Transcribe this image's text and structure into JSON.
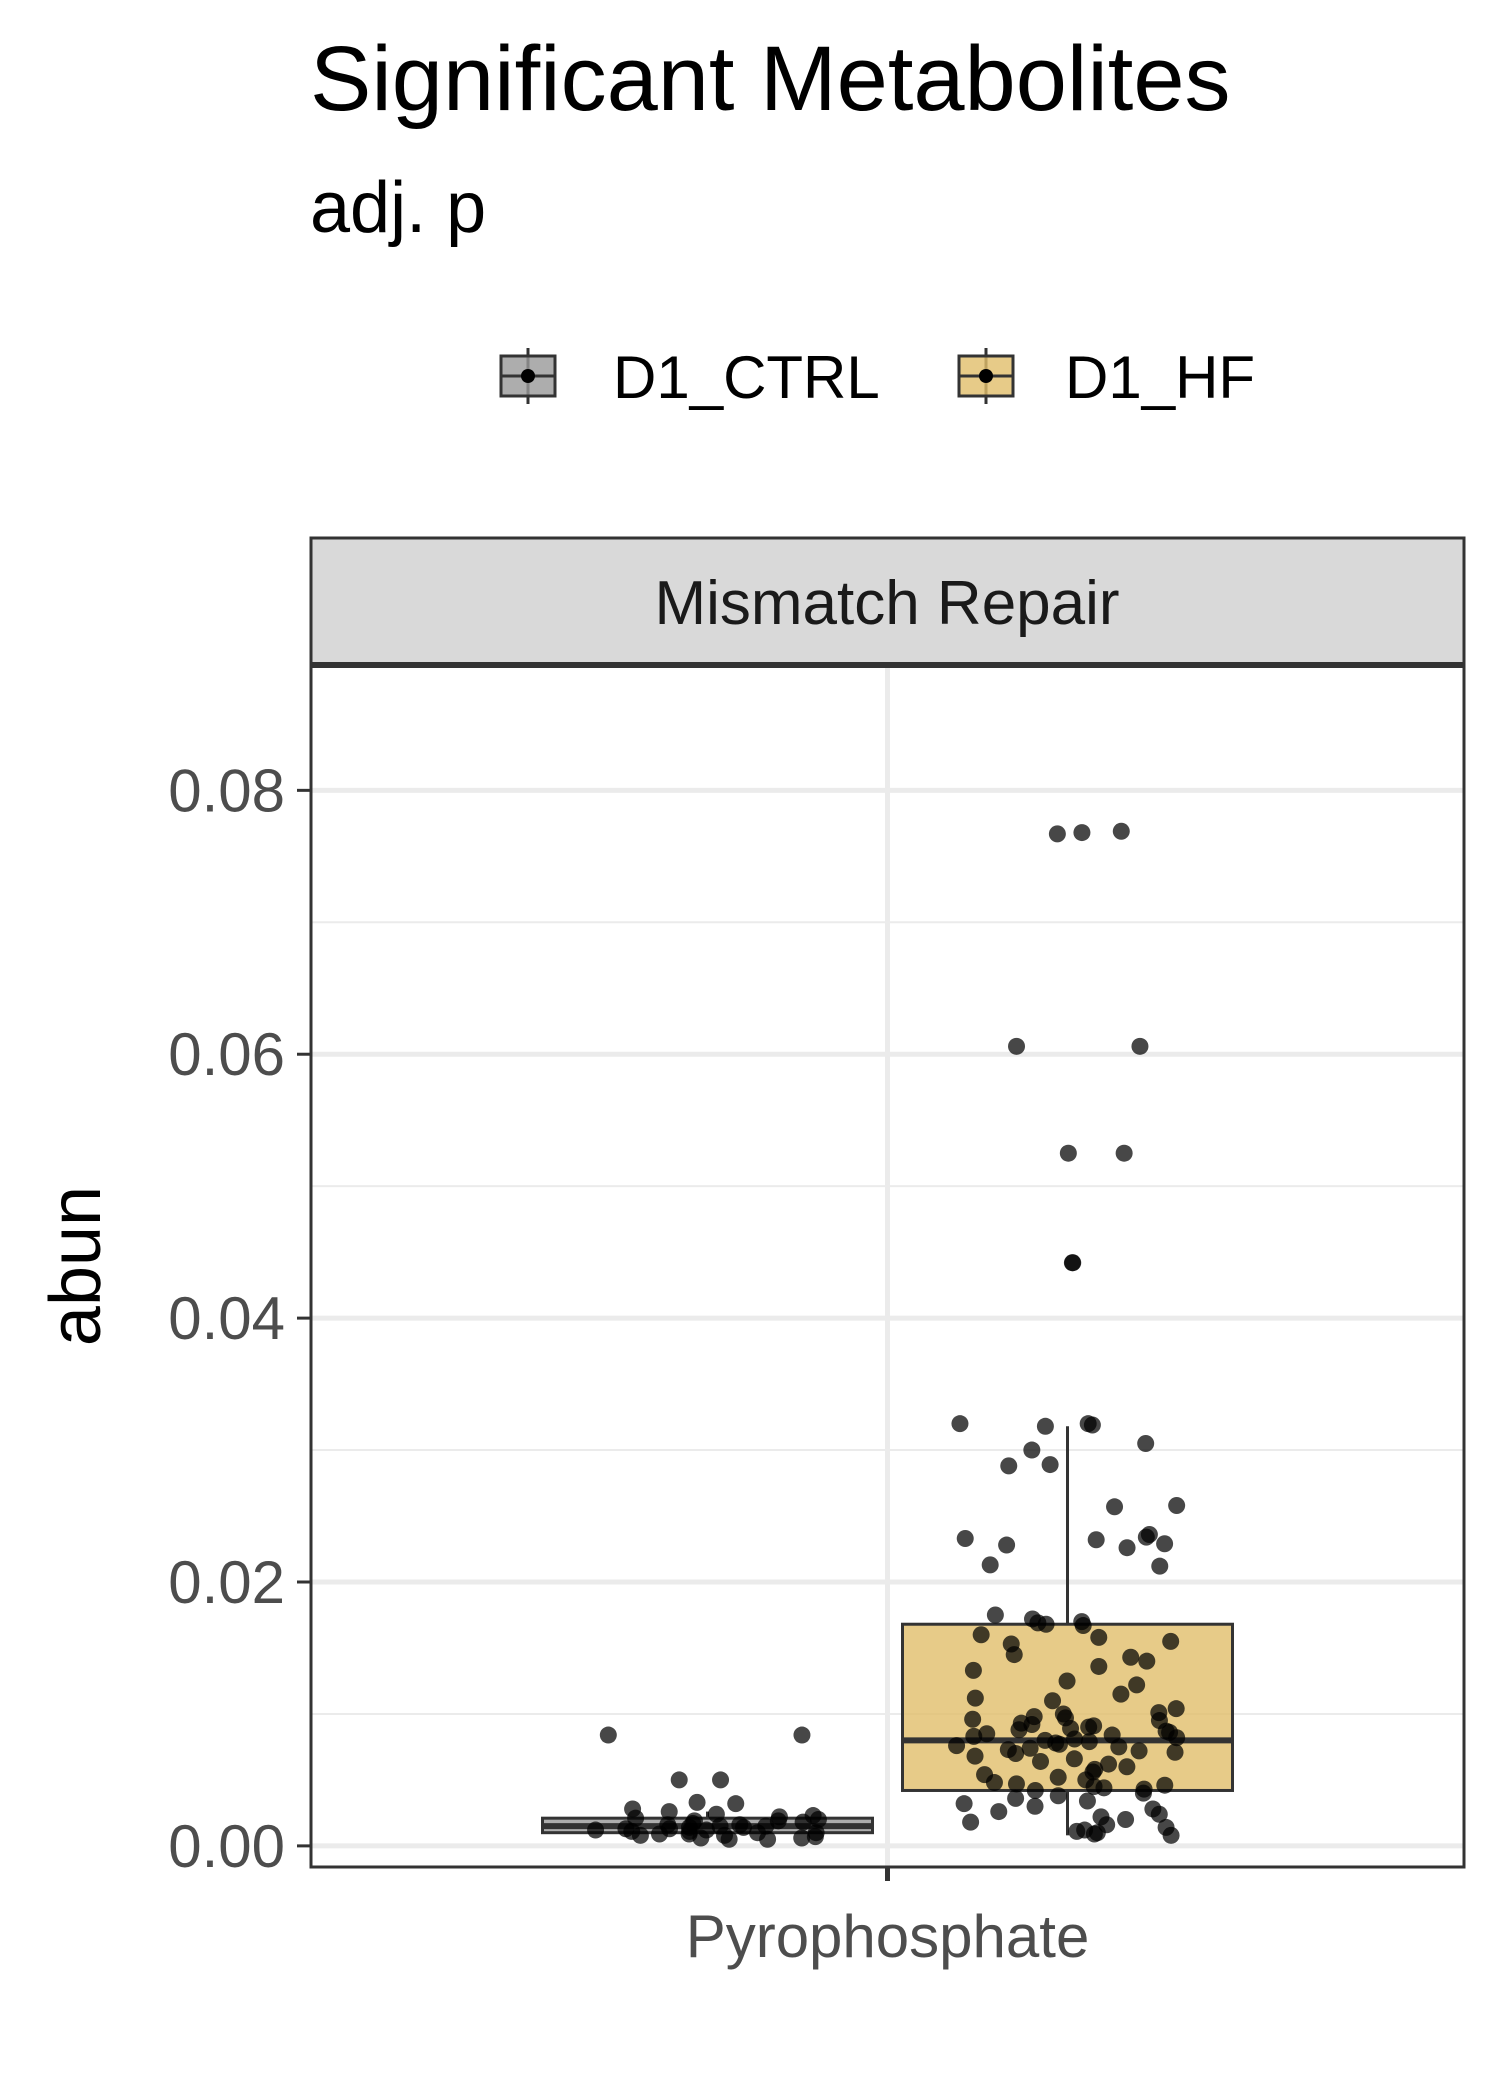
{
  "chart_data": {
    "type": "box",
    "title": "Significant Metabolites",
    "subtitle": "adj. p",
    "facet": "Mismatch Repair",
    "xlabel": "",
    "ylabel": "abun",
    "categories": [
      "Pyrophosphate"
    ],
    "ylim": [
      -0.0016,
      0.0895
    ],
    "yticks": [
      0.0,
      0.02,
      0.04,
      0.06,
      0.08
    ],
    "ytick_labels": [
      "0.00",
      "0.02",
      "0.04",
      "0.06",
      "0.08"
    ],
    "grid": true,
    "legend_position": "top",
    "series": [
      {
        "name": "D1_CTRL",
        "color": "#999999",
        "box": {
          "min": 0.0009,
          "q1": 0.001,
          "median": 0.0015,
          "q3": 0.0021,
          "max": 0.0026
        },
        "points": [
          0.0084,
          0.0084,
          0.005,
          0.005,
          0.0033,
          0.0032,
          0.0028,
          0.0026,
          0.0024,
          0.0023,
          0.0022,
          0.0021,
          0.002,
          0.0019,
          0.0019,
          0.0018,
          0.0017,
          0.0016,
          0.0016,
          0.0015,
          0.0015,
          0.0014,
          0.0014,
          0.0013,
          0.0013,
          0.0012,
          0.0012,
          0.0011,
          0.0011,
          0.001,
          0.001,
          0.0009,
          0.0009,
          0.0008,
          0.0008,
          0.0007,
          0.0006,
          0.0006,
          0.0005,
          0.0005
        ]
      },
      {
        "name": "D1_HF",
        "color": "#E1BE6A",
        "box": {
          "min": 0.0008,
          "q1": 0.0042,
          "median": 0.008,
          "q3": 0.0168,
          "max": 0.0318
        },
        "points": [
          0.0769,
          0.0768,
          0.0767,
          0.0606,
          0.0606,
          0.0525,
          0.0525,
          0.0442,
          0.0442,
          0.032,
          0.032,
          0.0319,
          0.0318,
          0.0305,
          0.03,
          0.0289,
          0.0288,
          0.0258,
          0.0257,
          0.0236,
          0.0234,
          0.0233,
          0.0232,
          0.0229,
          0.0228,
          0.0226,
          0.0213,
          0.0212,
          0.0175,
          0.0172,
          0.017,
          0.0169,
          0.0168,
          0.0167,
          0.016,
          0.0158,
          0.0155,
          0.0153,
          0.0145,
          0.0143,
          0.014,
          0.0136,
          0.0133,
          0.0125,
          0.0122,
          0.0115,
          0.0112,
          0.011,
          0.0104,
          0.0101,
          0.01,
          0.0098,
          0.0097,
          0.0096,
          0.0095,
          0.0093,
          0.0092,
          0.0091,
          0.009,
          0.0089,
          0.0088,
          0.0087,
          0.0086,
          0.0085,
          0.0084,
          0.0083,
          0.0082,
          0.0081,
          0.008,
          0.0079,
          0.0078,
          0.0077,
          0.0076,
          0.0075,
          0.0074,
          0.0073,
          0.0072,
          0.0071,
          0.007,
          0.0068,
          0.0066,
          0.0064,
          0.0062,
          0.006,
          0.0058,
          0.0056,
          0.0054,
          0.0052,
          0.005,
          0.0048,
          0.0047,
          0.0046,
          0.0045,
          0.0044,
          0.0043,
          0.0042,
          0.004,
          0.0038,
          0.0036,
          0.0034,
          0.0032,
          0.003,
          0.0028,
          0.0026,
          0.0024,
          0.0022,
          0.002,
          0.0018,
          0.0016,
          0.0014,
          0.0012,
          0.0011,
          0.001,
          0.0009,
          0.0008
        ]
      }
    ]
  }
}
